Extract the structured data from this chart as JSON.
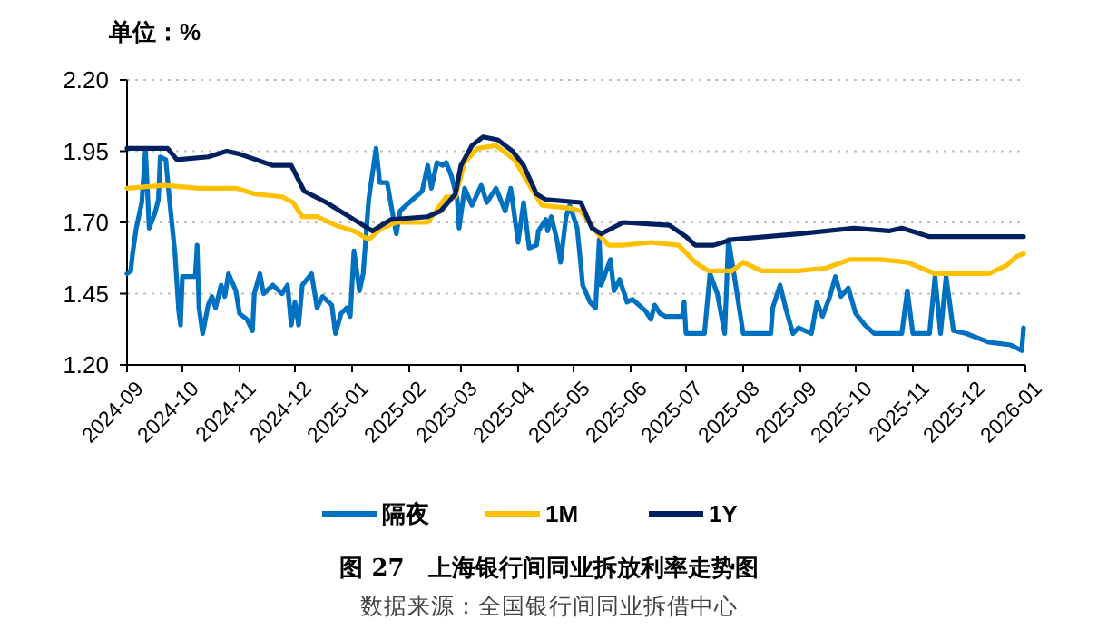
{
  "chart_data": {
    "type": "line",
    "ylabel": "单位：%",
    "title": "图 27　上海银行间同业拆放利率走势图",
    "annotations": [
      "数据来源：全国银行间同业拆借中心"
    ],
    "xlim": [
      "2024-09",
      "2026-01"
    ],
    "xticks": [
      "2024-09",
      "2024-10",
      "2024-11",
      "2024-12",
      "2025-01",
      "2025-02",
      "2025-03",
      "2025-04",
      "2025-05",
      "2025-06",
      "2025-07",
      "2025-08",
      "2025-09",
      "2025-10",
      "2025-11",
      "2025-12",
      "2026-01"
    ],
    "ylim": [
      1.2,
      2.2
    ],
    "yticks": [
      {
        "value": 1.2,
        "label": "1.20"
      },
      {
        "value": 1.45,
        "label": "1.45"
      },
      {
        "value": 1.7,
        "label": "1.70"
      },
      {
        "value": 1.95,
        "label": "1.95"
      },
      {
        "value": 2.2,
        "label": "2.20"
      }
    ],
    "grid": "y",
    "legend": "bottom",
    "marker": "none",
    "line_style": "solid",
    "series": [
      {
        "name": "隔夜",
        "color": "#0070c0",
        "x": [
          "2024-09-01",
          "2024-09-03",
          "2024-09-04",
          "2024-09-06",
          "2024-09-09",
          "2024-09-11",
          "2024-09-13",
          "2024-09-16",
          "2024-09-18",
          "2024-09-19",
          "2024-09-22",
          "2024-09-24",
          "2024-09-27",
          "2024-09-29",
          "2024-09-30",
          "2024-10-01",
          "2024-10-08",
          "2024-10-09",
          "2024-10-10",
          "2024-10-12",
          "2024-10-15",
          "2024-10-17",
          "2024-10-19",
          "2024-10-22",
          "2024-10-24",
          "2024-10-26",
          "2024-10-30",
          "2024-11-01",
          "2024-11-05",
          "2024-11-08",
          "2024-11-09",
          "2024-11-12",
          "2024-11-14",
          "2024-11-19",
          "2024-11-24",
          "2024-11-27",
          "2024-11-29",
          "2024-12-01",
          "2024-12-03",
          "2024-12-05",
          "2024-12-10",
          "2024-12-13",
          "2024-12-16",
          "2024-12-21",
          "2024-12-23",
          "2024-12-26",
          "2024-12-29",
          "2024-12-31",
          "2025-01-02",
          "2025-01-05",
          "2025-01-07",
          "2025-01-10",
          "2025-01-14",
          "2025-01-16",
          "2025-01-20",
          "2025-01-23",
          "2025-01-25",
          "2025-01-27",
          "2025-02-01",
          "2025-02-08",
          "2025-02-11",
          "2025-02-13",
          "2025-02-16",
          "2025-02-19",
          "2025-02-21",
          "2025-02-24",
          "2025-02-27",
          "2025-02-28",
          "2025-03-03",
          "2025-03-07",
          "2025-03-12",
          "2025-03-15",
          "2025-03-20",
          "2025-03-25",
          "2025-03-28",
          "2025-04-01",
          "2025-04-04",
          "2025-04-07",
          "2025-04-11",
          "2025-04-12",
          "2025-04-16",
          "2025-04-17",
          "2025-04-19",
          "2025-04-22",
          "2025-04-24",
          "2025-04-27",
          "2025-04-29",
          "2025-04-30",
          "2025-05-03",
          "2025-05-05",
          "2025-05-06",
          "2025-05-10",
          "2025-05-13",
          "2025-05-15",
          "2025-05-16",
          "2025-05-21",
          "2025-05-23",
          "2025-05-26",
          "2025-05-30",
          "2025-06-02",
          "2025-06-09",
          "2025-06-12",
          "2025-06-14",
          "2025-06-17",
          "2025-06-20",
          "2025-06-29",
          "2025-06-30",
          "2025-07-01",
          "2025-07-11",
          "2025-07-14",
          "2025-07-18",
          "2025-07-22",
          "2025-07-24",
          "2025-07-27",
          "2025-08-01",
          "2025-08-16",
          "2025-08-17",
          "2025-08-21",
          "2025-08-24",
          "2025-08-28",
          "2025-08-31",
          "2025-09-07",
          "2025-09-10",
          "2025-09-13",
          "2025-09-17",
          "2025-09-20",
          "2025-09-23",
          "2025-09-27",
          "2025-10-01",
          "2025-10-06",
          "2025-10-11",
          "2025-10-26",
          "2025-10-29",
          "2025-11-01",
          "2025-11-10",
          "2025-11-13",
          "2025-11-16",
          "2025-11-19",
          "2025-11-23",
          "2025-11-30",
          "2025-12-12",
          "2025-12-24",
          "2025-12-30",
          "2025-12-31"
        ],
        "values": [
          1.52,
          1.53,
          1.59,
          1.68,
          1.77,
          1.96,
          1.68,
          1.73,
          1.78,
          1.93,
          1.92,
          1.78,
          1.59,
          1.39,
          1.34,
          1.51,
          1.51,
          1.62,
          1.4,
          1.31,
          1.41,
          1.44,
          1.4,
          1.48,
          1.44,
          1.52,
          1.46,
          1.38,
          1.36,
          1.32,
          1.45,
          1.52,
          1.45,
          1.48,
          1.45,
          1.48,
          1.34,
          1.42,
          1.34,
          1.48,
          1.52,
          1.4,
          1.44,
          1.41,
          1.31,
          1.38,
          1.4,
          1.37,
          1.6,
          1.46,
          1.52,
          1.78,
          1.96,
          1.84,
          1.84,
          1.73,
          1.66,
          1.74,
          1.77,
          1.81,
          1.9,
          1.82,
          1.91,
          1.9,
          1.91,
          1.86,
          1.78,
          1.68,
          1.82,
          1.76,
          1.83,
          1.77,
          1.82,
          1.74,
          1.82,
          1.63,
          1.77,
          1.61,
          1.62,
          1.67,
          1.71,
          1.67,
          1.72,
          1.64,
          1.56,
          1.72,
          1.76,
          1.74,
          1.68,
          1.55,
          1.48,
          1.42,
          1.4,
          1.64,
          1.48,
          1.57,
          1.46,
          1.5,
          1.42,
          1.43,
          1.39,
          1.36,
          1.41,
          1.38,
          1.37,
          1.37,
          1.42,
          1.31,
          1.31,
          1.52,
          1.45,
          1.31,
          1.64,
          1.52,
          1.31,
          1.31,
          1.4,
          1.48,
          1.4,
          1.31,
          1.33,
          1.31,
          1.42,
          1.37,
          1.44,
          1.51,
          1.44,
          1.47,
          1.38,
          1.34,
          1.31,
          1.31,
          1.46,
          1.31,
          1.31,
          1.51,
          1.31,
          1.51,
          1.32,
          1.31,
          1.28,
          1.27,
          1.25,
          1.33
        ]
      },
      {
        "name": "1M",
        "color": "#ffc000",
        "x": [
          "2024-09-01",
          "2024-09-21",
          "2024-10-10",
          "2024-10-30",
          "2024-11-09",
          "2024-11-24",
          "2024-11-30",
          "2024-12-05",
          "2024-12-13",
          "2024-12-23",
          "2025-01-02",
          "2025-01-10",
          "2025-01-17",
          "2025-01-25",
          "2025-02-11",
          "2025-02-21",
          "2025-02-26",
          "2025-03-03",
          "2025-03-10",
          "2025-03-20",
          "2025-03-30",
          "2025-04-09",
          "2025-04-14",
          "2025-04-29",
          "2025-05-05",
          "2025-05-13",
          "2025-05-20",
          "2025-05-28",
          "2025-06-12",
          "2025-06-27",
          "2025-07-06",
          "2025-07-13",
          "2025-07-26",
          "2025-08-01",
          "2025-08-11",
          "2025-08-31",
          "2025-09-15",
          "2025-09-28",
          "2025-10-14",
          "2025-10-29",
          "2025-11-13",
          "2025-12-12",
          "2025-12-22",
          "2025-12-27",
          "2025-12-31"
        ],
        "values": [
          1.82,
          1.83,
          1.82,
          1.82,
          1.8,
          1.79,
          1.77,
          1.72,
          1.72,
          1.69,
          1.67,
          1.64,
          1.68,
          1.7,
          1.7,
          1.79,
          1.79,
          1.91,
          1.96,
          1.97,
          1.92,
          1.81,
          1.76,
          1.75,
          1.74,
          1.67,
          1.62,
          1.62,
          1.63,
          1.62,
          1.56,
          1.53,
          1.53,
          1.56,
          1.53,
          1.53,
          1.54,
          1.57,
          1.57,
          1.56,
          1.52,
          1.52,
          1.55,
          1.58,
          1.59
        ]
      },
      {
        "name": "1Y",
        "color": "#002060",
        "x": [
          "2024-09-01",
          "2024-09-23",
          "2024-09-28",
          "2024-10-15",
          "2024-10-25",
          "2024-11-01",
          "2024-11-19",
          "2024-11-29",
          "2024-12-06",
          "2024-12-18",
          "2025-01-02",
          "2025-01-12",
          "2025-01-22",
          "2025-02-11",
          "2025-02-18",
          "2025-02-26",
          "2025-03-01",
          "2025-03-07",
          "2025-03-13",
          "2025-03-21",
          "2025-03-29",
          "2025-04-04",
          "2025-04-11",
          "2025-04-16",
          "2025-05-05",
          "2025-05-11",
          "2025-05-16",
          "2025-05-28",
          "2025-06-22",
          "2025-07-01",
          "2025-07-06",
          "2025-07-16",
          "2025-07-26",
          "2025-08-31",
          "2025-09-30",
          "2025-10-19",
          "2025-10-26",
          "2025-11-10",
          "2025-12-12",
          "2025-12-31"
        ],
        "values": [
          1.96,
          1.96,
          1.92,
          1.93,
          1.95,
          1.94,
          1.9,
          1.9,
          1.81,
          1.77,
          1.71,
          1.67,
          1.71,
          1.72,
          1.74,
          1.8,
          1.9,
          1.97,
          2.0,
          1.99,
          1.95,
          1.9,
          1.8,
          1.78,
          1.77,
          1.68,
          1.66,
          1.7,
          1.69,
          1.65,
          1.62,
          1.62,
          1.64,
          1.66,
          1.68,
          1.67,
          1.68,
          1.65,
          1.65,
          1.65
        ]
      }
    ]
  }
}
